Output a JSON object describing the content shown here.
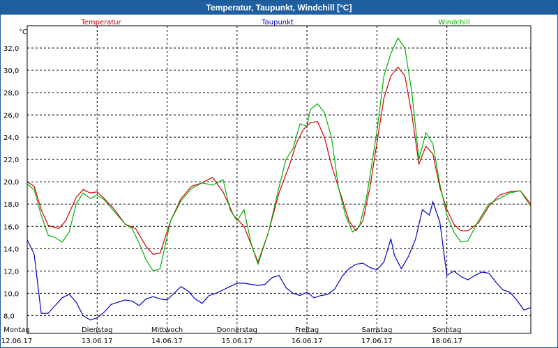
{
  "window": {
    "title": "Temperatur, Taupunkt, Windchill [°C]"
  },
  "chart_data": {
    "type": "line",
    "title": "Temperatur, Taupunkt, Windchill [°C]",
    "ylabel": "°C",
    "xlabel": "",
    "ylim": [
      6.4,
      34.0
    ],
    "yticks": [
      "8,0",
      "10,0",
      "12,0",
      "14,0",
      "16,0",
      "18,0",
      "20,0",
      "22,0",
      "24,0",
      "26,0",
      "28,0",
      "30,0",
      "32,0"
    ],
    "xlim": [
      0,
      7.2
    ],
    "xticks": [
      {
        "day": "Montag",
        "date": "12.06.17"
      },
      {
        "day": "Dienstag",
        "date": "13.06.17"
      },
      {
        "day": "Mittwoch",
        "date": "14.06.17"
      },
      {
        "day": "Donnerstag",
        "date": "15.06.17"
      },
      {
        "day": "Freitag",
        "date": "16.06.17"
      },
      {
        "day": "Samstag",
        "date": "17.06.17"
      },
      {
        "day": "Sonntag",
        "date": "18.06.17"
      }
    ],
    "grid": true,
    "legend_position": "top",
    "series": [
      {
        "name": "Temperatur",
        "color": "#d00000",
        "points": [
          [
            0,
            20.0
          ],
          [
            0.1,
            19.6
          ],
          [
            0.2,
            17.5
          ],
          [
            0.3,
            16.1
          ],
          [
            0.45,
            15.8
          ],
          [
            0.55,
            16.5
          ],
          [
            0.7,
            18.6
          ],
          [
            0.8,
            19.3
          ],
          [
            0.9,
            19.0
          ],
          [
            1.0,
            19.1
          ],
          [
            1.1,
            18.5
          ],
          [
            1.25,
            17.5
          ],
          [
            1.4,
            16.2
          ],
          [
            1.55,
            15.8
          ],
          [
            1.7,
            14.2
          ],
          [
            1.8,
            13.5
          ],
          [
            1.9,
            13.6
          ],
          [
            2.05,
            16.5
          ],
          [
            2.2,
            18.5
          ],
          [
            2.35,
            19.6
          ],
          [
            2.5,
            19.9
          ],
          [
            2.65,
            20.4
          ],
          [
            2.8,
            19.1
          ],
          [
            2.95,
            17.0
          ],
          [
            3.1,
            16.0
          ],
          [
            3.2,
            14.4
          ],
          [
            3.3,
            12.8
          ],
          [
            3.45,
            15.5
          ],
          [
            3.6,
            19.0
          ],
          [
            3.75,
            21.5
          ],
          [
            3.85,
            23.5
          ],
          [
            3.95,
            24.7
          ],
          [
            4.05,
            25.3
          ],
          [
            4.15,
            25.4
          ],
          [
            4.25,
            24.0
          ],
          [
            4.35,
            21.5
          ],
          [
            4.5,
            18.5
          ],
          [
            4.6,
            16.5
          ],
          [
            4.7,
            15.6
          ],
          [
            4.8,
            16.5
          ],
          [
            4.9,
            19.5
          ],
          [
            5.0,
            23.5
          ],
          [
            5.1,
            27.5
          ],
          [
            5.2,
            29.5
          ],
          [
            5.3,
            30.3
          ],
          [
            5.4,
            29.5
          ],
          [
            5.5,
            26.0
          ],
          [
            5.6,
            21.6
          ],
          [
            5.7,
            23.2
          ],
          [
            5.8,
            22.5
          ],
          [
            5.9,
            19.5
          ],
          [
            6.0,
            17.5
          ],
          [
            6.1,
            16.2
          ],
          [
            6.2,
            15.6
          ],
          [
            6.3,
            15.6
          ],
          [
            6.45,
            16.3
          ],
          [
            6.6,
            17.8
          ],
          [
            6.75,
            18.8
          ],
          [
            6.9,
            19.1
          ],
          [
            7.05,
            19.2
          ],
          [
            7.2,
            18.0
          ]
        ]
      },
      {
        "name": "Taupunkt",
        "color": "#0000c0",
        "points": [
          [
            0,
            14.8
          ],
          [
            0.1,
            13.5
          ],
          [
            0.2,
            8.2
          ],
          [
            0.3,
            8.2
          ],
          [
            0.4,
            8.9
          ],
          [
            0.5,
            9.6
          ],
          [
            0.6,
            9.9
          ],
          [
            0.7,
            9.2
          ],
          [
            0.8,
            8.0
          ],
          [
            0.9,
            7.6
          ],
          [
            1.0,
            7.8
          ],
          [
            1.1,
            8.3
          ],
          [
            1.2,
            9.0
          ],
          [
            1.3,
            9.2
          ],
          [
            1.4,
            9.4
          ],
          [
            1.5,
            9.3
          ],
          [
            1.6,
            8.9
          ],
          [
            1.7,
            9.5
          ],
          [
            1.8,
            9.7
          ],
          [
            1.9,
            9.5
          ],
          [
            2.0,
            9.4
          ],
          [
            2.1,
            10.0
          ],
          [
            2.2,
            10.6
          ],
          [
            2.3,
            10.2
          ],
          [
            2.4,
            9.5
          ],
          [
            2.5,
            9.1
          ],
          [
            2.6,
            9.8
          ],
          [
            2.7,
            10.0
          ],
          [
            2.8,
            10.3
          ],
          [
            2.9,
            10.6
          ],
          [
            3.0,
            10.9
          ],
          [
            3.1,
            10.9
          ],
          [
            3.2,
            10.8
          ],
          [
            3.3,
            10.7
          ],
          [
            3.4,
            10.8
          ],
          [
            3.5,
            11.4
          ],
          [
            3.6,
            11.6
          ],
          [
            3.7,
            10.5
          ],
          [
            3.8,
            10.0
          ],
          [
            3.9,
            9.8
          ],
          [
            4.0,
            10.1
          ],
          [
            4.1,
            9.6
          ],
          [
            4.2,
            9.8
          ],
          [
            4.3,
            9.9
          ],
          [
            4.4,
            10.4
          ],
          [
            4.5,
            11.5
          ],
          [
            4.6,
            12.2
          ],
          [
            4.7,
            12.6
          ],
          [
            4.8,
            12.7
          ],
          [
            4.9,
            12.3
          ],
          [
            5.0,
            12.1
          ],
          [
            5.1,
            12.8
          ],
          [
            5.2,
            14.9
          ],
          [
            5.25,
            13.4
          ],
          [
            5.35,
            12.2
          ],
          [
            5.45,
            13.3
          ],
          [
            5.55,
            14.8
          ],
          [
            5.65,
            17.5
          ],
          [
            5.75,
            17.0
          ],
          [
            5.8,
            18.2
          ],
          [
            5.9,
            16.4
          ],
          [
            6.0,
            11.6
          ],
          [
            6.1,
            12.0
          ],
          [
            6.2,
            11.5
          ],
          [
            6.3,
            11.2
          ],
          [
            6.4,
            11.6
          ],
          [
            6.5,
            11.9
          ],
          [
            6.6,
            11.8
          ],
          [
            6.7,
            11.0
          ],
          [
            6.8,
            10.3
          ],
          [
            6.9,
            10.1
          ],
          [
            7.0,
            9.4
          ],
          [
            7.1,
            8.5
          ],
          [
            7.2,
            8.7
          ]
        ]
      },
      {
        "name": "Windchill",
        "color": "#00b000",
        "points": [
          [
            0,
            19.8
          ],
          [
            0.1,
            19.3
          ],
          [
            0.2,
            17.0
          ],
          [
            0.3,
            15.2
          ],
          [
            0.4,
            15.0
          ],
          [
            0.5,
            14.6
          ],
          [
            0.6,
            15.5
          ],
          [
            0.7,
            18.0
          ],
          [
            0.8,
            19.0
          ],
          [
            0.9,
            18.5
          ],
          [
            1.0,
            18.8
          ],
          [
            1.1,
            18.4
          ],
          [
            1.25,
            17.3
          ],
          [
            1.4,
            16.2
          ],
          [
            1.5,
            15.8
          ],
          [
            1.6,
            14.5
          ],
          [
            1.7,
            13.0
          ],
          [
            1.8,
            12.0
          ],
          [
            1.9,
            12.2
          ],
          [
            2.05,
            16.5
          ],
          [
            2.2,
            18.3
          ],
          [
            2.35,
            19.4
          ],
          [
            2.5,
            19.9
          ],
          [
            2.65,
            19.7
          ],
          [
            2.8,
            20.2
          ],
          [
            2.9,
            17.5
          ],
          [
            3.0,
            16.5
          ],
          [
            3.1,
            17.5
          ],
          [
            3.2,
            14.5
          ],
          [
            3.3,
            12.6
          ],
          [
            3.45,
            15.5
          ],
          [
            3.6,
            19.5
          ],
          [
            3.7,
            22.0
          ],
          [
            3.8,
            23.0
          ],
          [
            3.9,
            25.2
          ],
          [
            4.0,
            25.0
          ],
          [
            4.05,
            26.5
          ],
          [
            4.15,
            27.0
          ],
          [
            4.25,
            26.2
          ],
          [
            4.35,
            24.0
          ],
          [
            4.45,
            19.5
          ],
          [
            4.55,
            17.0
          ],
          [
            4.65,
            15.5
          ],
          [
            4.75,
            16.0
          ],
          [
            4.85,
            18.5
          ],
          [
            5.0,
            24.5
          ],
          [
            5.1,
            29.5
          ],
          [
            5.2,
            31.5
          ],
          [
            5.3,
            32.9
          ],
          [
            5.4,
            32.0
          ],
          [
            5.5,
            28.0
          ],
          [
            5.6,
            22.0
          ],
          [
            5.7,
            24.4
          ],
          [
            5.8,
            23.4
          ],
          [
            5.9,
            19.8
          ],
          [
            6.0,
            17.0
          ],
          [
            6.1,
            15.5
          ],
          [
            6.2,
            14.6
          ],
          [
            6.3,
            14.7
          ],
          [
            6.45,
            16.5
          ],
          [
            6.6,
            18.0
          ],
          [
            6.75,
            18.5
          ],
          [
            6.9,
            19.0
          ],
          [
            7.05,
            19.2
          ],
          [
            7.2,
            17.8
          ]
        ]
      }
    ]
  }
}
